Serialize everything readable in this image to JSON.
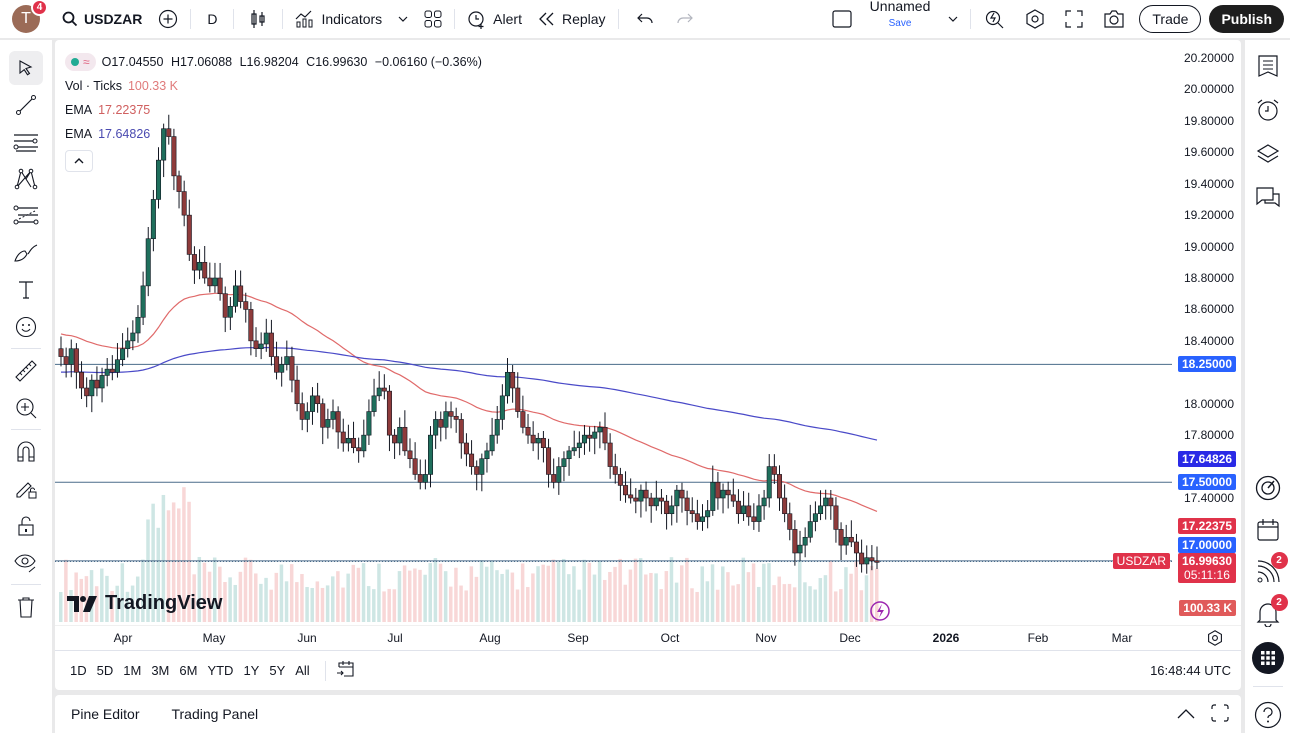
{
  "topbar": {
    "avatar_letter": "T",
    "avatar_badge": "4",
    "symbol": "USDZAR",
    "interval": "D",
    "indicators_label": "Indicators",
    "alert_label": "Alert",
    "replay_label": "Replay",
    "layout_name": "Unnamed",
    "layout_save": "Save",
    "trade_label": "Trade",
    "publish_label": "Publish"
  },
  "legend": {
    "open": "O17.04550",
    "high": "H17.06088",
    "low": "L16.98204",
    "close": "C16.99630",
    "change": "−0.06160 (−0.36%)",
    "vol_label": "Vol · Ticks",
    "vol_value": "100.33 K",
    "ema1_label": "EMA",
    "ema1_value": "17.22375",
    "ema2_label": "EMA",
    "ema2_value": "17.64826"
  },
  "colors": {
    "up": "#1f6f5c",
    "down": "#8e3b3b",
    "ema_fast": "#e06a6a",
    "ema_slow": "#4a4ac8",
    "hline": "#4a6b8a",
    "label_blue": "#2962ff",
    "label_ema_slow": "#2a2ae6",
    "label_red": "#e0324a"
  },
  "price_axis": {
    "ticks": [
      "20.20000",
      "20.00000",
      "19.80000",
      "19.60000",
      "19.40000",
      "19.20000",
      "19.00000",
      "18.80000",
      "18.60000",
      "18.40000",
      "18.00000",
      "17.80000",
      "17.40000"
    ],
    "labels": {
      "hline_high": "18.25000",
      "ema_slow": "17.64826",
      "hline_mid": "17.50000",
      "ema_fast": "17.22375",
      "hline_low": "17.00000",
      "symbol_tag": "USDZAR",
      "last_price": "16.99630",
      "countdown": "05:11:16",
      "volume": "100.33 K"
    }
  },
  "time_axis": {
    "labels": [
      "Apr",
      "May",
      "Jun",
      "Jul",
      "Aug",
      "Sep",
      "Oct",
      "Nov",
      "Dec",
      "2026",
      "Feb",
      "Mar"
    ]
  },
  "range_bar": {
    "ranges": [
      "1D",
      "5D",
      "1M",
      "3M",
      "6M",
      "YTD",
      "1Y",
      "5Y",
      "All"
    ],
    "clock": "16:48:44 UTC"
  },
  "bottom_panel": {
    "tabs": [
      "Pine Editor",
      "Trading Panel"
    ]
  },
  "watermark": "TradingView",
  "right_toolbar": {
    "streams_badge": "2",
    "alerts_badge": "2"
  },
  "chart_data": {
    "type": "candlestick",
    "symbol": "USDZAR",
    "interval": "D",
    "ylim": [
      16.8,
      20.3
    ],
    "hlines": [
      18.25,
      17.5,
      17.0
    ],
    "last_close": 16.9963,
    "ema_fast_last": 17.22375,
    "ema_slow_last": 17.64826,
    "closes": [
      18.3,
      18.25,
      18.35,
      18.2,
      18.1,
      18.05,
      18.15,
      18.1,
      18.18,
      18.22,
      18.2,
      18.28,
      18.35,
      18.4,
      18.45,
      18.55,
      18.75,
      19.05,
      19.3,
      19.55,
      19.75,
      19.7,
      19.45,
      19.35,
      19.2,
      18.95,
      18.85,
      18.9,
      18.8,
      18.75,
      18.8,
      18.7,
      18.55,
      18.62,
      18.75,
      18.65,
      18.6,
      18.4,
      18.35,
      18.38,
      18.45,
      18.3,
      18.2,
      18.25,
      18.3,
      18.15,
      18.0,
      17.9,
      17.95,
      18.05,
      18.0,
      17.85,
      17.9,
      17.95,
      17.82,
      17.75,
      17.78,
      17.72,
      17.7,
      17.8,
      17.95,
      18.05,
      18.1,
      18.08,
      17.8,
      17.75,
      17.85,
      17.7,
      17.65,
      17.55,
      17.5,
      17.55,
      17.8,
      17.9,
      17.85,
      17.95,
      17.92,
      17.9,
      17.75,
      17.68,
      17.6,
      17.55,
      17.65,
      17.7,
      17.8,
      17.9,
      18.05,
      18.2,
      18.1,
      17.95,
      17.85,
      17.8,
      17.75,
      17.78,
      17.72,
      17.55,
      17.5,
      17.6,
      17.65,
      17.7,
      17.72,
      17.75,
      17.8,
      17.78,
      17.82,
      17.85,
      17.75,
      17.6,
      17.55,
      17.48,
      17.42,
      17.4,
      17.38,
      17.45,
      17.4,
      17.35,
      17.4,
      17.38,
      17.3,
      17.35,
      17.45,
      17.4,
      17.32,
      17.3,
      17.25,
      17.28,
      17.32,
      17.5,
      17.4,
      17.45,
      17.42,
      17.38,
      17.3,
      17.35,
      17.28,
      17.25,
      17.35,
      17.4,
      17.6,
      17.55,
      17.4,
      17.3,
      17.2,
      17.05,
      17.1,
      17.15,
      17.25,
      17.3,
      17.35,
      17.4,
      17.35,
      17.2,
      17.1,
      17.15,
      17.12,
      17.05,
      16.98,
      17.02,
      17.0,
      16.9963
    ]
  }
}
